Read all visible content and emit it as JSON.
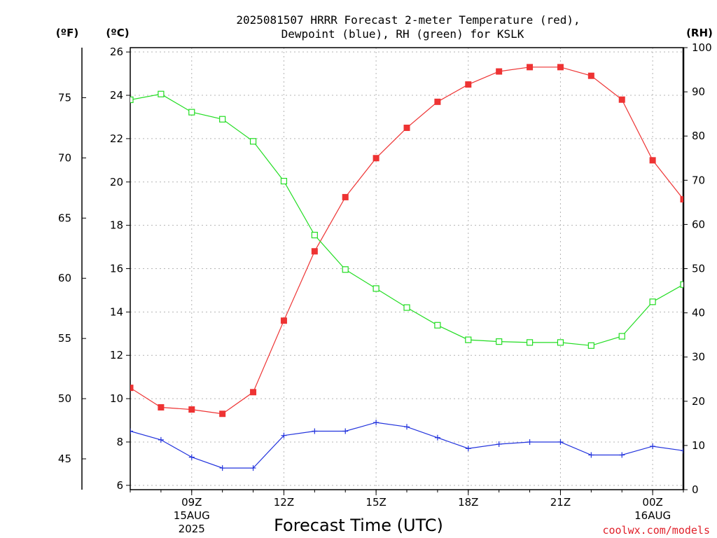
{
  "chart_data": {
    "type": "line",
    "title_line1": "2025081507 HRRR Forecast 2-meter Temperature (red),",
    "title_line2": "Dewpoint (blue), RH (green) for KSLK",
    "xlabel": "Forecast Time (UTC)",
    "unit_left_f": "(ºF)",
    "unit_left_c": "(ºC)",
    "unit_right": "(RH)",
    "credit": "coolwx.com/models",
    "x_hours_utc": [
      7,
      8,
      9,
      10,
      11,
      12,
      13,
      14,
      15,
      16,
      17,
      18,
      19,
      20,
      21,
      22,
      23,
      24,
      25
    ],
    "x_range": [
      7,
      25
    ],
    "x_ticks": [
      {
        "hour": 9,
        "label": "09Z",
        "sub1": "15AUG",
        "sub2": "2025"
      },
      {
        "hour": 12,
        "label": "12Z",
        "sub1": "",
        "sub2": ""
      },
      {
        "hour": 15,
        "label": "15Z",
        "sub1": "",
        "sub2": ""
      },
      {
        "hour": 18,
        "label": "18Z",
        "sub1": "",
        "sub2": ""
      },
      {
        "hour": 21,
        "label": "21Z",
        "sub1": "",
        "sub2": ""
      },
      {
        "hour": 24,
        "label": "00Z",
        "sub1": "16AUG",
        "sub2": ""
      }
    ],
    "ylim_c": [
      5.8,
      26.2
    ],
    "y_ticks_c": [
      6,
      8,
      10,
      12,
      14,
      16,
      18,
      20,
      22,
      24,
      26
    ],
    "y_ticks_f": [
      45,
      50,
      55,
      60,
      65,
      70,
      75
    ],
    "rh_range": [
      0,
      100
    ],
    "y_ticks_rh": [
      0,
      10,
      20,
      30,
      40,
      50,
      60,
      70,
      80,
      90,
      100
    ],
    "grid": true,
    "series": [
      {
        "name": "Temperature",
        "color": "#ee3333",
        "marker": "filled-square",
        "values_c": [
          10.5,
          9.6,
          9.5,
          9.3,
          10.3,
          13.6,
          16.8,
          19.3,
          21.1,
          22.5,
          23.7,
          24.5,
          25.1,
          25.3,
          25.3,
          24.9,
          23.8,
          21.0,
          19.2
        ]
      },
      {
        "name": "Dewpoint",
        "color": "#2233dd",
        "marker": "plus",
        "values_c": [
          8.5,
          8.1,
          7.3,
          6.8,
          6.8,
          8.3,
          8.5,
          8.5,
          8.9,
          8.7,
          8.2,
          7.7,
          7.9,
          8.0,
          8.0,
          7.4,
          7.4,
          7.8,
          7.6
        ]
      },
      {
        "name": "RH",
        "color": "#22dd22",
        "marker": "open-square",
        "values_rh": [
          88.2,
          89.5,
          85.4,
          83.8,
          78.8,
          69.8,
          57.6,
          49.8,
          45.5,
          41.2,
          37.2,
          33.9,
          33.5,
          33.3,
          33.3,
          32.6,
          34.7,
          42.5,
          46.4
        ]
      }
    ]
  }
}
